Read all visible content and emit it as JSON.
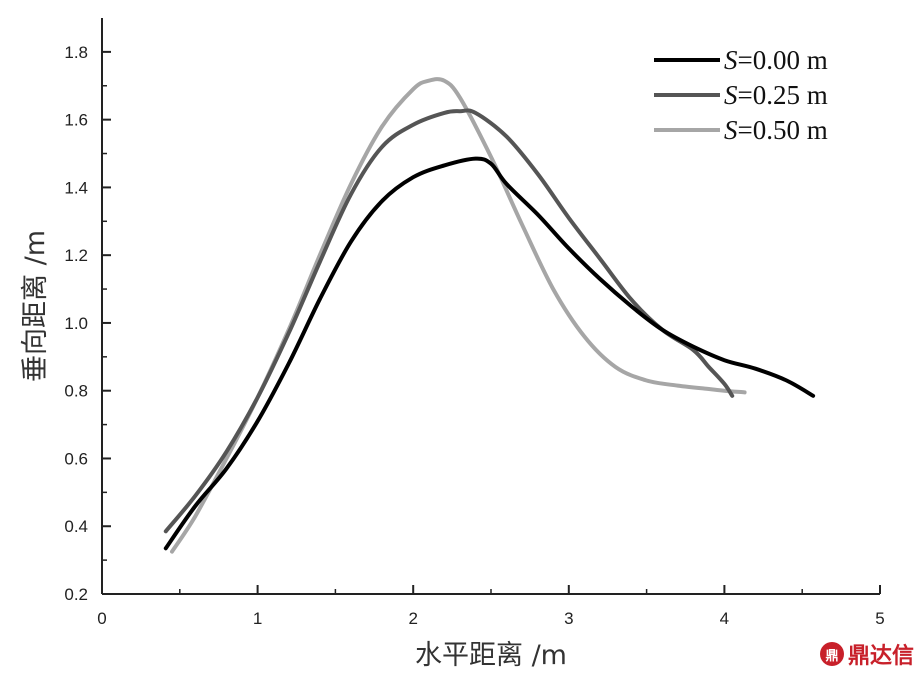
{
  "chart_data": {
    "type": "line",
    "title": "",
    "xlabel": "水平距离 /m",
    "ylabel": "垂向距离 /m",
    "xlim": [
      0,
      5
    ],
    "ylim": [
      0.2,
      1.9
    ],
    "xticks": [
      0,
      1,
      2,
      3,
      4,
      5
    ],
    "yticks": [
      0.2,
      0.4,
      0.6,
      0.8,
      1.0,
      1.2,
      1.4,
      1.6,
      1.8
    ],
    "ytick_labels": [
      "0.2",
      "0.4",
      "0.6",
      "0.8",
      "1.0",
      "1.2",
      "1.4",
      "1.6",
      "1.8"
    ],
    "grid": false,
    "legend_position": "top-right",
    "series": [
      {
        "name": "S=0.00 m",
        "legend_italic": "S",
        "legend_rest": "=0.00 m",
        "color": "#000000",
        "points": [
          [
            0.41,
            0.335
          ],
          [
            0.6,
            0.46
          ],
          [
            0.8,
            0.57
          ],
          [
            1.0,
            0.71
          ],
          [
            1.2,
            0.88
          ],
          [
            1.4,
            1.07
          ],
          [
            1.6,
            1.24
          ],
          [
            1.8,
            1.36
          ],
          [
            2.0,
            1.43
          ],
          [
            2.2,
            1.465
          ],
          [
            2.4,
            1.485
          ],
          [
            2.5,
            1.47
          ],
          [
            2.6,
            1.41
          ],
          [
            2.8,
            1.32
          ],
          [
            3.0,
            1.22
          ],
          [
            3.2,
            1.13
          ],
          [
            3.4,
            1.05
          ],
          [
            3.6,
            0.98
          ],
          [
            3.8,
            0.93
          ],
          [
            4.0,
            0.89
          ],
          [
            4.2,
            0.865
          ],
          [
            4.4,
            0.83
          ],
          [
            4.57,
            0.785
          ]
        ]
      },
      {
        "name": "S=0.25 m",
        "legend_italic": "S",
        "legend_rest": "=0.25 m",
        "color": "#555555",
        "points": [
          [
            0.41,
            0.385
          ],
          [
            0.6,
            0.49
          ],
          [
            0.8,
            0.62
          ],
          [
            1.0,
            0.78
          ],
          [
            1.2,
            0.97
          ],
          [
            1.4,
            1.18
          ],
          [
            1.6,
            1.38
          ],
          [
            1.8,
            1.52
          ],
          [
            2.0,
            1.585
          ],
          [
            2.2,
            1.62
          ],
          [
            2.3,
            1.625
          ],
          [
            2.4,
            1.62
          ],
          [
            2.6,
            1.55
          ],
          [
            2.8,
            1.44
          ],
          [
            3.0,
            1.31
          ],
          [
            3.2,
            1.19
          ],
          [
            3.4,
            1.07
          ],
          [
            3.6,
            0.98
          ],
          [
            3.8,
            0.92
          ],
          [
            3.9,
            0.87
          ],
          [
            4.0,
            0.82
          ],
          [
            4.05,
            0.785
          ]
        ]
      },
      {
        "name": "S=0.50 m",
        "legend_italic": "S",
        "legend_rest": "=0.50 m",
        "color": "#a6a6a6",
        "points": [
          [
            0.45,
            0.325
          ],
          [
            0.6,
            0.43
          ],
          [
            0.8,
            0.6
          ],
          [
            1.0,
            0.78
          ],
          [
            1.2,
            0.98
          ],
          [
            1.4,
            1.2
          ],
          [
            1.6,
            1.41
          ],
          [
            1.8,
            1.58
          ],
          [
            2.0,
            1.69
          ],
          [
            2.1,
            1.715
          ],
          [
            2.2,
            1.715
          ],
          [
            2.3,
            1.665
          ],
          [
            2.5,
            1.49
          ],
          [
            2.7,
            1.29
          ],
          [
            2.9,
            1.1
          ],
          [
            3.1,
            0.96
          ],
          [
            3.3,
            0.87
          ],
          [
            3.5,
            0.83
          ],
          [
            3.7,
            0.815
          ],
          [
            3.9,
            0.805
          ],
          [
            4.0,
            0.8
          ],
          [
            4.13,
            0.795
          ]
        ]
      }
    ]
  },
  "watermark": {
    "icon_text": "鼎",
    "text": "鼎达信"
  }
}
